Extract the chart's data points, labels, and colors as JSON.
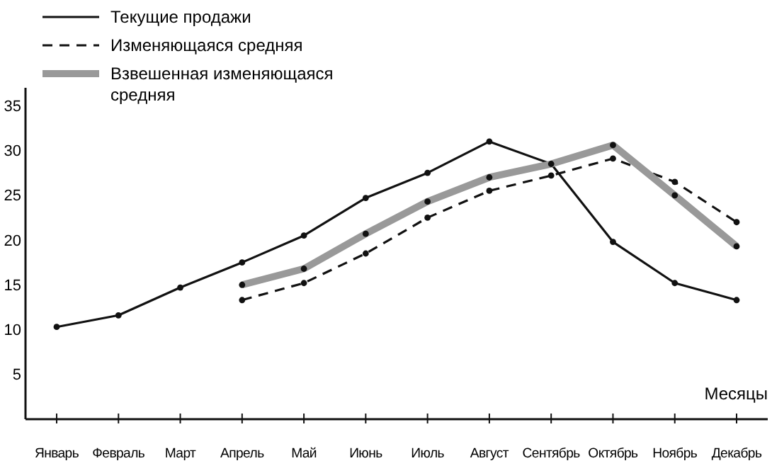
{
  "chart_data": {
    "type": "line",
    "xlabel": "Месяцы",
    "categories": [
      "Январь",
      "Февраль",
      "Март",
      "Апрель",
      "Май",
      "Июнь",
      "Июль",
      "Август",
      "Сентябрь",
      "Октябрь",
      "Ноябрь",
      "Декабрь"
    ],
    "series": [
      {
        "name": "Текущие продажи",
        "color": "#111111",
        "line_style": "solid",
        "values": [
          10.3,
          11.6,
          14.7,
          17.5,
          20.5,
          24.7,
          27.5,
          31,
          28.5,
          19.8,
          15.2,
          13.3
        ]
      },
      {
        "name": "Изменяющаяся средняя",
        "color": "#111111",
        "line_style": "dashed",
        "values": [
          null,
          null,
          null,
          13.3,
          15.2,
          18.5,
          22.5,
          25.5,
          27.2,
          29.1,
          26.5,
          22
        ]
      },
      {
        "name": "Взвешенная изменяющаяся средняя",
        "color": "#999999",
        "line_style": "solid",
        "values": [
          null,
          null,
          null,
          15,
          16.8,
          20.7,
          24.3,
          27,
          28.5,
          30.6,
          25,
          19.3
        ]
      }
    ],
    "ylim": [
      0,
      37
    ],
    "yticks": [
      5,
      10,
      15,
      20,
      25,
      30,
      35
    ],
    "marker": "circle",
    "legend": "top left",
    "grid": false
  }
}
